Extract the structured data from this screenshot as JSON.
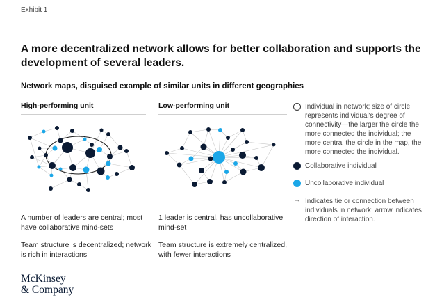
{
  "header": {
    "exhibit": "Exhibit 1"
  },
  "title": "A more decentralized network allows for better collaboration and supports the development of several leaders.",
  "subtitle": "Network maps, disguised example of similar units in different geographies",
  "columns": {
    "high": {
      "title": "High-performing unit",
      "desc1": "A number of leaders are central; most have collaborative mind-sets",
      "desc2": "Team structure is decentralized; network is rich in interactions"
    },
    "low": {
      "title": "Low-performing unit",
      "desc1": "1 leader is central, has uncollaborative mind-set",
      "desc2": "Team structure is extremely centralized, with fewer interactions"
    }
  },
  "legend": {
    "individual": "Individual in network; size of circle represents individual's degree of connectivity—the larger the circle the more connected the individual; the more central the circle in the map, the more connected the individual.",
    "collaborative": "Collaborative individual",
    "uncollaborative": "Uncollaborative individual",
    "tie": "Indicates tie or connection between individuals in network; arrow indicates direction of interaction."
  },
  "colors": {
    "collaborative": "#0a1a33",
    "uncollaborative": "#1ba7e8",
    "tie": "#c6c6c6"
  },
  "logo": {
    "line1": "McKinsey",
    "line2": "& Company"
  }
}
